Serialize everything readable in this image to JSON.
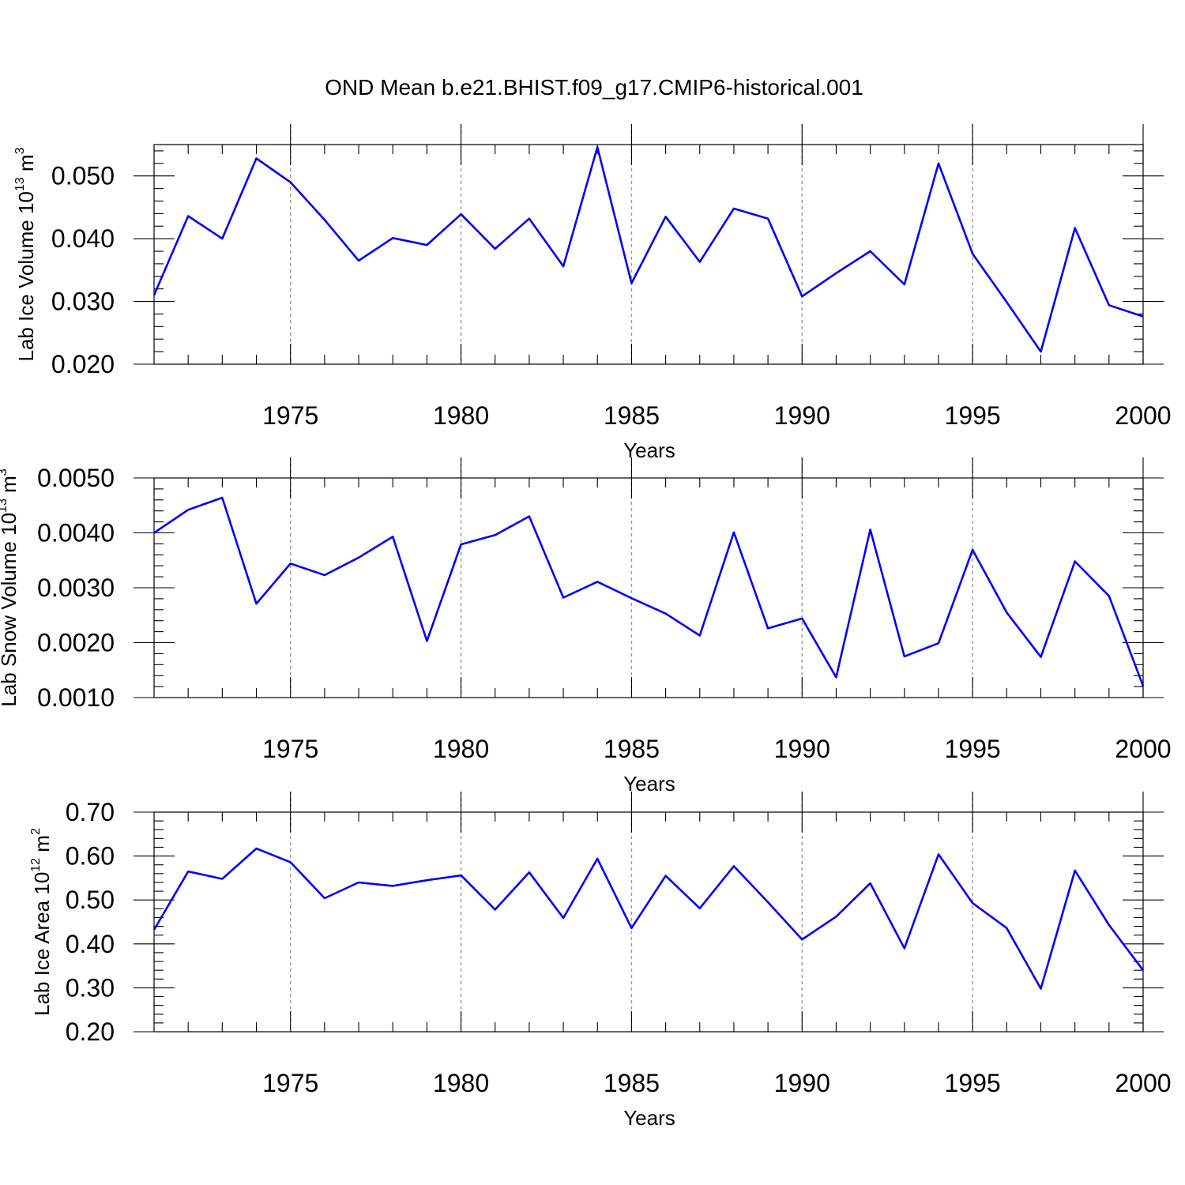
{
  "title": "OND Mean b.e21.BHIST.f09_g17.CMIP6-historical.001",
  "colors": {
    "series": "#0000ff",
    "grid": "#9a9a9a"
  },
  "chart_data": [
    {
      "type": "line",
      "ylabel": {
        "main": "Lab Ice Volume 10",
        "exp": "13",
        "unit": " m",
        "unit_exp": "3"
      },
      "xlabel": "Years",
      "xlim": [
        1971,
        2000
      ],
      "ylim": [
        0.02,
        0.055
      ],
      "yticks": [
        0.02,
        0.03,
        0.04,
        0.05
      ],
      "ytick_labels": [
        "0.020",
        "0.030",
        "0.040",
        "0.050"
      ],
      "xticks": [
        1975,
        1980,
        1985,
        1990,
        1995,
        2000
      ],
      "xtick_labels": [
        "1975",
        "1980",
        "1985",
        "1990",
        "1995",
        "2000"
      ],
      "grid": "vertical dashed at major x ticks",
      "x": [
        1971,
        1972,
        1973,
        1974,
        1975,
        1976,
        1977,
        1978,
        1979,
        1980,
        1981,
        1982,
        1983,
        1984,
        1985,
        1986,
        1987,
        1988,
        1989,
        1990,
        1991,
        1992,
        1993,
        1994,
        1995,
        1996,
        1997,
        1998,
        1999,
        2000
      ],
      "y": [
        0.031,
        0.0436,
        0.04,
        0.0528,
        0.049,
        0.043,
        0.0365,
        0.0401,
        0.039,
        0.0439,
        0.0384,
        0.0432,
        0.0356,
        0.0546,
        0.0329,
        0.0435,
        0.0363,
        0.0448,
        0.0432,
        0.0308,
        0.0345,
        0.038,
        0.0327,
        0.052,
        0.0376,
        0.0299,
        0.022,
        0.0417,
        0.0294,
        0.0276
      ]
    },
    {
      "type": "line",
      "ylabel": {
        "main": "Lab Snow Volume 10",
        "exp": "13",
        "unit": " m",
        "unit_exp": "3"
      },
      "xlabel": "Years",
      "xlim": [
        1971,
        2000
      ],
      "ylim": [
        0.001,
        0.005
      ],
      "yticks": [
        0.001,
        0.002,
        0.003,
        0.004,
        0.005
      ],
      "ytick_labels": [
        "0.0010",
        "0.0020",
        "0.0030",
        "0.0040",
        "0.0050"
      ],
      "xticks": [
        1975,
        1980,
        1985,
        1990,
        1995,
        2000
      ],
      "xtick_labels": [
        "1975",
        "1980",
        "1985",
        "1990",
        "1995",
        "2000"
      ],
      "grid": "vertical dashed at major x ticks",
      "x": [
        1971,
        1972,
        1973,
        1974,
        1975,
        1976,
        1977,
        1978,
        1979,
        1980,
        1981,
        1982,
        1983,
        1984,
        1985,
        1986,
        1987,
        1988,
        1989,
        1990,
        1991,
        1992,
        1993,
        1994,
        1995,
        1996,
        1997,
        1998,
        1999,
        2000
      ],
      "y": [
        0.004,
        0.00442,
        0.00464,
        0.00271,
        0.00344,
        0.00323,
        0.00355,
        0.00393,
        0.00203,
        0.00379,
        0.00396,
        0.0043,
        0.00282,
        0.00311,
        0.00281,
        0.00253,
        0.00213,
        0.00401,
        0.00226,
        0.00244,
        0.00137,
        0.00406,
        0.00175,
        0.00199,
        0.00369,
        0.00255,
        0.00174,
        0.00348,
        0.00285,
        0.00121
      ]
    },
    {
      "type": "line",
      "ylabel": {
        "main": "Lab Ice Area 10",
        "exp": "12",
        "unit": " m",
        "unit_exp": "2"
      },
      "xlabel": "Years",
      "xlim": [
        1971,
        2000
      ],
      "ylim": [
        0.2,
        0.7
      ],
      "yticks": [
        0.2,
        0.3,
        0.4,
        0.5,
        0.6,
        0.7
      ],
      "ytick_labels": [
        "0.20",
        "0.30",
        "0.40",
        "0.50",
        "0.60",
        "0.70"
      ],
      "xticks": [
        1975,
        1980,
        1985,
        1990,
        1995,
        2000
      ],
      "xtick_labels": [
        "1975",
        "1980",
        "1985",
        "1990",
        "1995",
        "2000"
      ],
      "grid": "vertical dashed at major x ticks",
      "x": [
        1971,
        1972,
        1973,
        1974,
        1975,
        1976,
        1977,
        1978,
        1979,
        1980,
        1981,
        1982,
        1983,
        1984,
        1985,
        1986,
        1987,
        1988,
        1989,
        1990,
        1991,
        1992,
        1993,
        1994,
        1995,
        1996,
        1997,
        1998,
        1999,
        2000
      ],
      "y": [
        0.432,
        0.565,
        0.548,
        0.617,
        0.586,
        0.504,
        0.54,
        0.532,
        0.545,
        0.556,
        0.478,
        0.563,
        0.459,
        0.594,
        0.436,
        0.555,
        0.481,
        0.577,
        0.495,
        0.41,
        0.462,
        0.538,
        0.39,
        0.604,
        0.493,
        0.436,
        0.298,
        0.567,
        0.443,
        0.34
      ]
    }
  ]
}
